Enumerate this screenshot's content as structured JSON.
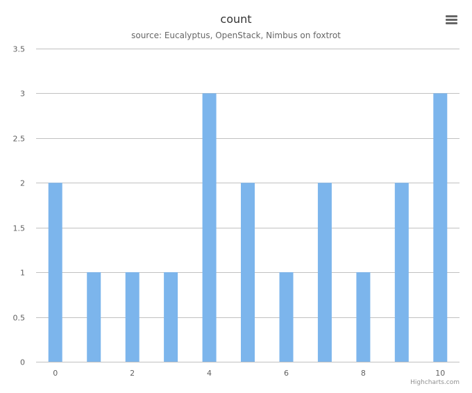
{
  "chart_data": {
    "type": "bar",
    "title": "count",
    "subtitle": "source: Eucalyptus, OpenStack, Nimbus on foxtrot",
    "xlabel": "",
    "ylabel": "",
    "x": [
      0,
      1,
      2,
      3,
      4,
      5,
      6,
      7,
      8,
      9,
      10
    ],
    "values": [
      2,
      1,
      1,
      1,
      3,
      2,
      1,
      2,
      1,
      2,
      3
    ],
    "x_tick_labels": [
      "0",
      "2",
      "4",
      "6",
      "8",
      "10"
    ],
    "x_ticks": [
      0,
      2,
      4,
      6,
      8,
      10
    ],
    "y_ticks": [
      0,
      0.5,
      1,
      1.5,
      2,
      2.5,
      3,
      3.5
    ],
    "y_tick_labels": [
      "0",
      "0.5",
      "1",
      "1.5",
      "2",
      "2.5",
      "3",
      "3.5"
    ],
    "ylim": [
      0,
      3.5
    ],
    "xlim": [
      -0.5,
      10.5
    ],
    "grid": true,
    "legend": "none",
    "bar_color": "#7cb5ec"
  },
  "menu": {
    "icon": "hamburger-menu-icon"
  },
  "credits": "Highcharts.com"
}
